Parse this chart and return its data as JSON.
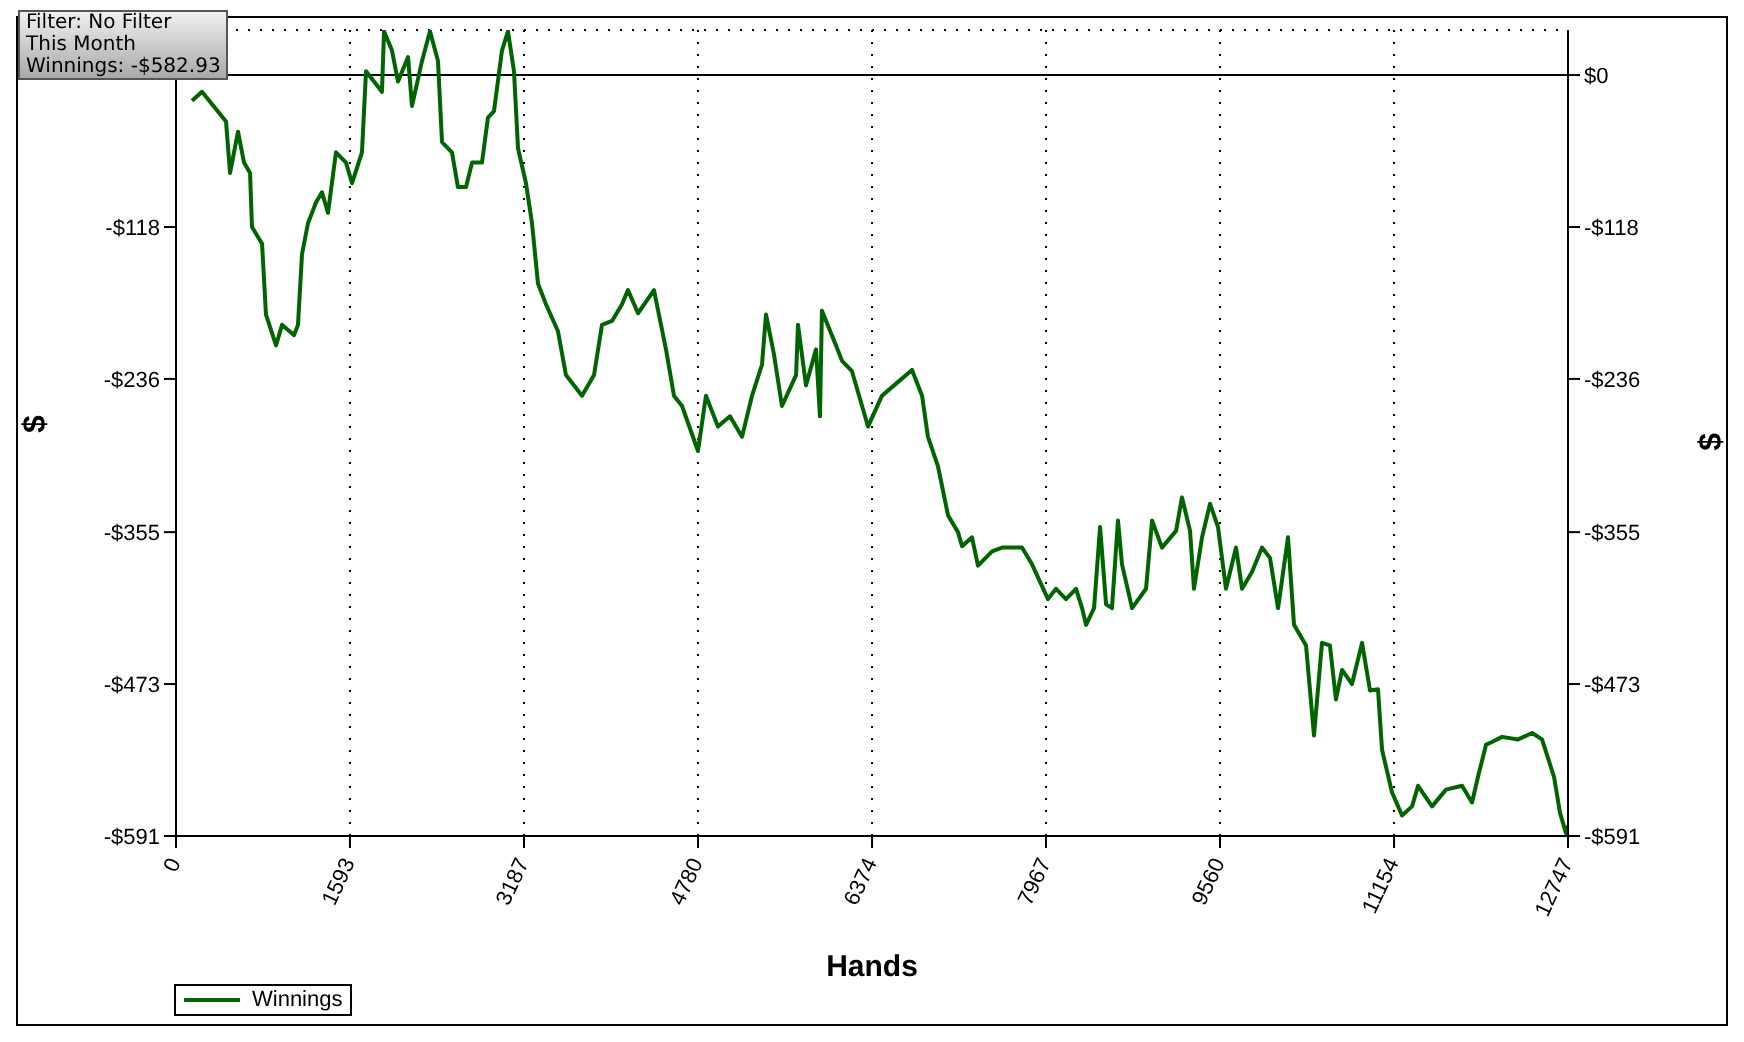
{
  "chart_data": {
    "type": "line",
    "xlabel": "Hands",
    "ylabel": "$",
    "y2label": "$",
    "annotations": [
      "Filter: No Filter",
      "This Month",
      "Winnings: -$582.93"
    ],
    "xlim": [
      0,
      12747
    ],
    "xticks": [
      0,
      1593,
      3187,
      4780,
      6374,
      7967,
      9560,
      11154,
      12747
    ],
    "ylim": [
      -591,
      35
    ],
    "yticks": [
      {
        "value": 0,
        "label": null
      },
      {
        "value": -118,
        "label": "-$118"
      },
      {
        "value": -236,
        "label": "-$236"
      },
      {
        "value": -355,
        "label": "-$355"
      },
      {
        "value": -473,
        "label": "-$473"
      },
      {
        "value": -591,
        "label": "-$591"
      }
    ],
    "y2lim": [
      -591,
      35
    ],
    "y2ticks": [
      {
        "value": 0,
        "label": "$0"
      },
      {
        "value": -118,
        "label": "-$118"
      },
      {
        "value": -236,
        "label": "-$236"
      },
      {
        "value": -355,
        "label": "-$355"
      },
      {
        "value": -473,
        "label": "-$473"
      },
      {
        "value": -591,
        "label": "-$591"
      }
    ],
    "grid": true,
    "legend": "bottom left",
    "marker": "none",
    "line_style": "solid",
    "ref_lines": [
      {
        "axis": "y",
        "value": 0,
        "color": "#000000"
      }
    ],
    "series": [
      {
        "name": "Winnings",
        "color": "#006400",
        "x": [
          147,
          238,
          458,
          495,
          568,
          623,
          678,
          696,
          788,
          824,
          916,
          971,
          1081,
          1117,
          1154,
          1209,
          1282,
          1337,
          1392,
          1465,
          1557,
          1612,
          1703,
          1740,
          1813,
          1886,
          1905,
          1978,
          2033,
          2125,
          2161,
          2253,
          2326,
          2399,
          2436,
          2527,
          2582,
          2656,
          2711,
          2802,
          2857,
          2912,
          2985,
          3040,
          3095,
          3132,
          3205,
          3260,
          3315,
          3388,
          3498,
          3571,
          3718,
          3828,
          3901,
          3993,
          4084,
          4139,
          4231,
          4377,
          4487,
          4560,
          4634,
          4780,
          4853,
          4963,
          5073,
          5183,
          5275,
          5366,
          5403,
          5476,
          5549,
          5678,
          5696,
          5769,
          5861,
          5897,
          5915,
          6044,
          6099,
          6190,
          6337,
          6465,
          6575,
          6740,
          6832,
          6886,
          6978,
          7070,
          7161,
          7198,
          7289,
          7344,
          7473,
          7564,
          7747,
          7839,
          7985,
          8059,
          8150,
          8242,
          8297,
          8334,
          8407,
          8462,
          8517,
          8571,
          8626,
          8663,
          8755,
          8883,
          8938,
          9029,
          9158,
          9212,
          9286,
          9322,
          9396,
          9469,
          9542,
          9615,
          9707,
          9762,
          9853,
          9945,
          10018,
          10092,
          10183,
          10238,
          10348,
          10421,
          10494,
          10567,
          10622,
          10678,
          10769,
          10861,
          10934,
          11007,
          11044,
          11135,
          11227,
          11319,
          11374,
          11502,
          11630,
          11777,
          11868,
          11923,
          11997,
          12051,
          12143,
          12290,
          12418,
          12509,
          12619,
          12674,
          12729,
          12747
        ],
        "values": [
          -20,
          -13,
          -36,
          -76,
          -44,
          -68,
          -76,
          -118,
          -131,
          -186,
          -210,
          -194,
          -202,
          -194,
          -139,
          -115,
          -99,
          -91,
          -107,
          -60,
          -68,
          -84,
          -60,
          3,
          -5,
          -13,
          34,
          19,
          -5,
          14,
          -24,
          11,
          34,
          11,
          -52,
          -60,
          -87,
          -87,
          -68,
          -68,
          -33,
          -28,
          19,
          34,
          3,
          -57,
          -84,
          -115,
          -162,
          -178,
          -199,
          -233,
          -249,
          -233,
          -194,
          -191,
          -178,
          -167,
          -185,
          -167,
          -213,
          -249,
          -257,
          -292,
          -249,
          -273,
          -265,
          -281,
          -249,
          -225,
          -186,
          -217,
          -257,
          -233,
          -194,
          -241,
          -213,
          -265,
          -183,
          -210,
          -222,
          -230,
          -273,
          -249,
          -241,
          -229,
          -249,
          -281,
          -304,
          -342,
          -355,
          -366,
          -359,
          -381,
          -370,
          -367,
          -367,
          -380,
          -407,
          -399,
          -407,
          -399,
          -414,
          -427,
          -414,
          -351,
          -411,
          -414,
          -346,
          -380,
          -414,
          -399,
          -346,
          -367,
          -354,
          -328,
          -354,
          -399,
          -359,
          -333,
          -351,
          -399,
          -367,
          -399,
          -386,
          -367,
          -375,
          -414,
          -359,
          -427,
          -443,
          -513,
          -441,
          -443,
          -485,
          -462,
          -473,
          -441,
          -478,
          -477,
          -524,
          -557,
          -575,
          -568,
          -552,
          -568,
          -555,
          -552,
          -565,
          -545,
          -520,
          -518,
          -514,
          -516,
          -511,
          -516,
          -545,
          -573,
          -589,
          -583
        ]
      }
    ]
  }
}
